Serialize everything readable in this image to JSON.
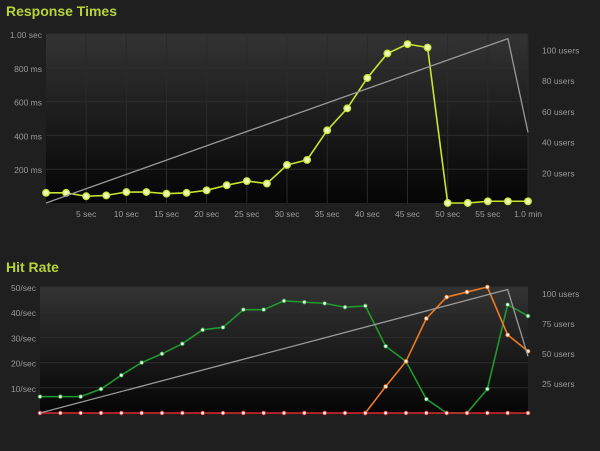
{
  "chart_data": [
    {
      "type": "line",
      "title": "Response Times",
      "x_ticks": [
        "5 sec",
        "10 sec",
        "15 sec",
        "20 sec",
        "25 sec",
        "30 sec",
        "35 sec",
        "40 sec",
        "45 sec",
        "50 sec",
        "55 sec",
        "1.0 min"
      ],
      "y_ticks": [
        "1.00 sec",
        "800 ms",
        "600 ms",
        "400 ms",
        "200 ms"
      ],
      "y2_ticks": [
        "100 users",
        "80 users",
        "60 users",
        "40 users",
        "20 users"
      ],
      "xlim": [
        0,
        60
      ],
      "ylim": [
        0,
        1000
      ],
      "y2lim": [
        0,
        110
      ],
      "grid": true,
      "series": [
        {
          "axis": "left",
          "color": "#c8e62e",
          "markers": true,
          "x": [
            0,
            2.5,
            5,
            7.5,
            10,
            12.5,
            15,
            17.5,
            20,
            22.5,
            25,
            27.5,
            30,
            32.5,
            35,
            37.5,
            40,
            42.5,
            45,
            47.5,
            50,
            52.5,
            55,
            57.5,
            60
          ],
          "y": [
            60,
            60,
            40,
            45,
            65,
            65,
            55,
            60,
            75,
            105,
            130,
            115,
            225,
            255,
            430,
            560,
            740,
            885,
            940,
            920,
            0,
            0,
            10,
            10,
            10
          ]
        },
        {
          "axis": "right",
          "color": "#9a9a9a",
          "markers": false,
          "x": [
            0,
            57.5,
            60
          ],
          "y": [
            0,
            107,
            46
          ]
        }
      ]
    },
    {
      "type": "line",
      "title": "Hit Rate",
      "x_ticks": [],
      "y_ticks": [
        "50/sec",
        "40/sec",
        "30/sec",
        "20/sec",
        "10/sec"
      ],
      "y2_ticks": [
        "100 users",
        "75 users",
        "50 users",
        "25 users"
      ],
      "xlim": [
        0,
        60
      ],
      "ylim": [
        0,
        50
      ],
      "y2lim": [
        0,
        100
      ],
      "grid": true,
      "series": [
        {
          "axis": "left",
          "color": "#1f9a2e",
          "markers": true,
          "x": [
            0,
            2.5,
            5,
            7.5,
            10,
            12.5,
            15,
            17.5,
            20,
            22.5,
            25,
            27.5,
            30,
            32.5,
            35,
            37.5,
            40,
            42.5,
            45,
            47.5,
            50,
            52.5,
            55,
            57.5,
            60
          ],
          "y": [
            6.5,
            6.5,
            6.5,
            9.5,
            15,
            20,
            23.5,
            27.5,
            33,
            34,
            41,
            41,
            44.5,
            44,
            43.5,
            42,
            42.5,
            26.5,
            20.5,
            5.5,
            0,
            0,
            9.5,
            43,
            38.5
          ]
        },
        {
          "axis": "left",
          "color": "#ee7a22",
          "markers": true,
          "x": [
            40,
            42.5,
            45,
            47.5,
            50,
            52.5,
            55,
            57.5,
            60
          ],
          "y": [
            0,
            10.5,
            20.5,
            37.5,
            46,
            48,
            50,
            31,
            24.5
          ]
        },
        {
          "axis": "left",
          "color": "#e02828",
          "markers": true,
          "x": [
            0,
            2.5,
            5,
            7.5,
            10,
            12.5,
            15,
            17.5,
            20,
            22.5,
            25,
            27.5,
            30,
            32.5,
            35,
            37.5,
            40,
            42.5,
            45,
            47.5,
            50,
            52.5,
            55,
            57.5,
            60
          ],
          "y": [
            0,
            0,
            0,
            0,
            0,
            0,
            0,
            0,
            0,
            0,
            0,
            0,
            0,
            0,
            0,
            0,
            0,
            0,
            0,
            0,
            0,
            0,
            0,
            0,
            0
          ]
        },
        {
          "axis": "right",
          "color": "#9a9a9a",
          "markers": false,
          "x": [
            0,
            57.5,
            60
          ],
          "y": [
            0,
            98,
            45
          ]
        }
      ]
    }
  ]
}
